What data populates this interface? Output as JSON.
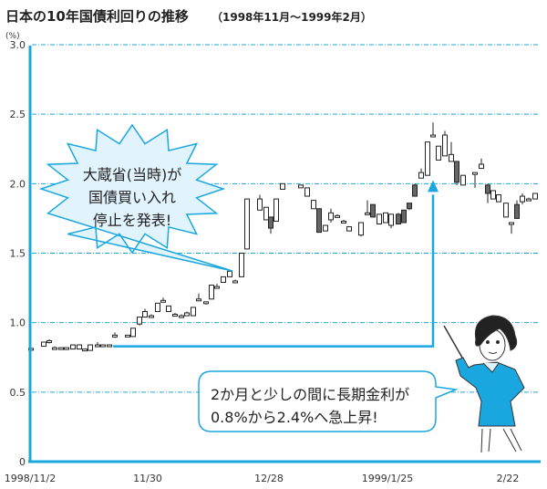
{
  "title": "日本の10年国債利回りの推移",
  "subtitle": "（1998年11月〜1999年2月）",
  "accent_color": "#1aa7e0",
  "bubble_fill": "#e1f3fc",
  "callouts": {
    "starburst": [
      "大蔵省(当時)が",
      "国債買い入れ",
      "停止を発表!"
    ],
    "speech": [
      "2か月と少しの間に長期金利が",
      "0.8%から2.4%へ急上昇!"
    ]
  },
  "illustration": "woman-with-pointer",
  "chart_data": {
    "type": "candlestick",
    "title": "日本の10年国債利回りの推移（1998年11月〜1999年2月）",
    "ylabel": "(%)",
    "ylim": [
      0,
      3.0
    ],
    "y_ticks": [
      "0",
      "0.5",
      "1.0",
      "1.5",
      "2.0",
      "2.5",
      "3.0"
    ],
    "x_ticks": [
      "1998/11/2",
      "11/30",
      "12/28",
      "1999/1/25",
      "2/22"
    ],
    "grid": "horizontal dashed",
    "annotation_line": {
      "from_value": 0.83,
      "to_value": 2.0
    },
    "candles_ohlc": [
      [
        0.815,
        0.82,
        0.81,
        0.815
      ],
      [
        0.83,
        0.86,
        0.83,
        0.86
      ],
      [
        0.86,
        0.88,
        0.85,
        0.87
      ],
      [
        0.82,
        0.83,
        0.82,
        0.82
      ],
      [
        0.82,
        0.82,
        0.82,
        0.82
      ],
      [
        0.82,
        0.82,
        0.82,
        0.82
      ],
      [
        0.81,
        0.84,
        0.81,
        0.84
      ],
      [
        0.81,
        0.84,
        0.81,
        0.84
      ],
      [
        0.81,
        0.81,
        0.8,
        0.81
      ],
      [
        0.8,
        0.84,
        0.8,
        0.84
      ],
      [
        0.84,
        0.86,
        0.83,
        0.84
      ],
      [
        0.83,
        0.84,
        0.83,
        0.84
      ],
      [
        0.83,
        0.84,
        0.83,
        0.84
      ],
      [
        0.91,
        0.93,
        0.89,
        0.91
      ],
      [
        0.91,
        0.91,
        0.91,
        0.91
      ],
      [
        0.9,
        0.96,
        0.9,
        0.96
      ],
      [
        0.99,
        1.04,
        0.98,
        1.04
      ],
      [
        1.04,
        1.1,
        1.04,
        1.08
      ],
      [
        1.05,
        1.06,
        1.05,
        1.05
      ],
      [
        1.08,
        1.14,
        1.08,
        1.14
      ],
      [
        1.16,
        1.18,
        1.15,
        1.16
      ],
      [
        1.08,
        1.12,
        1.08,
        1.12
      ],
      [
        1.05,
        1.07,
        1.05,
        1.06
      ],
      [
        1.05,
        1.06,
        1.04,
        1.05
      ],
      [
        1.05,
        1.08,
        1.05,
        1.07
      ],
      [
        1.05,
        1.11,
        1.05,
        1.11
      ],
      [
        1.17,
        1.21,
        1.17,
        1.17
      ],
      [
        1.15,
        1.15,
        1.13,
        1.15
      ],
      [
        1.17,
        1.27,
        1.17,
        1.27
      ],
      [
        1.26,
        1.28,
        1.26,
        1.26
      ],
      [
        1.29,
        1.33,
        1.29,
        1.33
      ],
      [
        1.33,
        1.37,
        1.33,
        1.37
      ],
      [
        1.3,
        1.31,
        1.29,
        1.3
      ],
      [
        1.33,
        1.5,
        1.33,
        1.5
      ],
      [
        1.53,
        1.89,
        1.53,
        1.89
      ],
      [
        1.81,
        1.92,
        1.81,
        1.89
      ],
      [
        1.74,
        1.83,
        1.74,
        1.83
      ],
      [
        1.76,
        1.76,
        1.64,
        1.68
      ],
      [
        1.73,
        1.89,
        1.73,
        1.89
      ],
      [
        1.96,
        2.0,
        1.96,
        2.0
      ],
      [
        1.97,
        1.99,
        1.97,
        1.99
      ],
      [
        1.91,
        1.97,
        1.91,
        1.97
      ],
      [
        1.82,
        1.88,
        1.82,
        1.88
      ],
      [
        1.82,
        1.82,
        1.65,
        1.65
      ],
      [
        1.66,
        1.7,
        1.66,
        1.7
      ],
      [
        1.74,
        1.82,
        1.72,
        1.79
      ],
      [
        1.77,
        1.78,
        1.76,
        1.77
      ],
      [
        1.73,
        1.74,
        1.72,
        1.73
      ],
      [
        1.66,
        1.69,
        1.66,
        1.69
      ],
      [
        1.63,
        1.72,
        1.62,
        1.72
      ],
      [
        1.79,
        1.88,
        1.78,
        1.79
      ],
      [
        1.85,
        1.85,
        1.76,
        1.76
      ],
      [
        1.71,
        1.78,
        1.71,
        1.78
      ],
      [
        1.72,
        1.79,
        1.72,
        1.79
      ],
      [
        1.7,
        1.78,
        1.68,
        1.78
      ],
      [
        1.78,
        1.79,
        1.71,
        1.71
      ],
      [
        1.81,
        1.81,
        1.72,
        1.72
      ],
      [
        1.86,
        1.86,
        1.81,
        1.82
      ],
      [
        1.99,
        2.0,
        1.91,
        1.91
      ],
      [
        2.04,
        2.11,
        2.04,
        2.08
      ],
      [
        2.06,
        2.3,
        2.06,
        2.3
      ],
      [
        2.35,
        2.44,
        2.34,
        2.35
      ],
      [
        2.17,
        2.27,
        2.17,
        2.27
      ],
      [
        2.2,
        2.38,
        2.2,
        2.35
      ],
      [
        2.16,
        2.3,
        2.16,
        2.21
      ],
      [
        2.16,
        2.16,
        1.99,
        2.01
      ],
      [
        1.99,
        2.06,
        1.99,
        2.06
      ],
      [
        2.08,
        2.08,
        1.97,
        2.08
      ],
      [
        2.11,
        2.18,
        2.11,
        2.14
      ],
      [
        1.99,
        2.0,
        1.86,
        1.93
      ],
      [
        1.89,
        1.95,
        1.89,
        1.95
      ],
      [
        1.87,
        1.92,
        1.87,
        1.92
      ],
      [
        1.76,
        1.86,
        1.76,
        1.86
      ],
      [
        1.72,
        1.72,
        1.64,
        1.72
      ],
      [
        1.85,
        1.88,
        1.75,
        1.75
      ],
      [
        1.87,
        1.93,
        1.85,
        1.91
      ],
      [
        1.89,
        1.9,
        1.88,
        1.89
      ],
      [
        1.89,
        1.93,
        1.89,
        1.93
      ]
    ]
  }
}
